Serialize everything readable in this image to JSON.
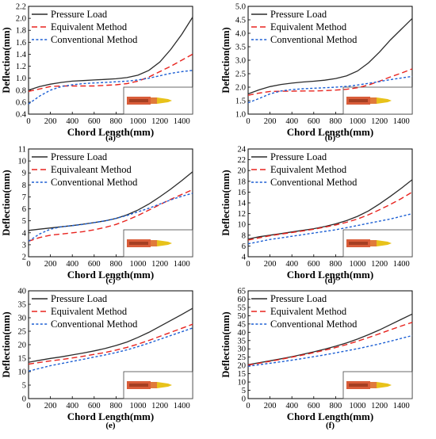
{
  "figure": {
    "colors": {
      "pressure": "#2b2b2b",
      "equivalent": "#e8231e",
      "conventional": "#1c5fd4",
      "bullet_body": "#d95d3a",
      "bullet_tip": "#e8c21a",
      "inset_border": "#444444"
    },
    "inset_icon": "bullet-projectile-icon"
  },
  "chart_data": [
    {
      "type": "line",
      "caption": "(a)",
      "xlabel": "Chord Length(mm)",
      "ylabel": "Deflection(mm)",
      "xlim": [
        0,
        1500
      ],
      "ylim": [
        0.4,
        2.2
      ],
      "xticks": [
        0,
        200,
        400,
        600,
        800,
        1000,
        1200,
        1400
      ],
      "yticks": [
        0.4,
        0.6,
        0.8,
        1.0,
        1.2,
        1.4,
        1.6,
        1.8,
        2.0,
        2.2
      ],
      "ytick_labels": [
        "0.4",
        "0.6",
        "0.8",
        "1.0",
        "1.2",
        "1.4",
        "1.6",
        "1.8",
        "2.0",
        "2.2"
      ],
      "legend_position": "top-left",
      "series": [
        {
          "name": "Pressure Load",
          "style": "solid",
          "x": [
            0,
            100,
            200,
            300,
            400,
            500,
            600,
            700,
            800,
            900,
            1000,
            1100,
            1200,
            1300,
            1400,
            1500
          ],
          "y": [
            0.8,
            0.86,
            0.9,
            0.93,
            0.95,
            0.96,
            0.97,
            0.98,
            0.99,
            1.01,
            1.05,
            1.13,
            1.27,
            1.48,
            1.73,
            2.02
          ]
        },
        {
          "name": "Equivalent Method",
          "style": "dash",
          "x": [
            0,
            100,
            200,
            300,
            400,
            500,
            600,
            700,
            800,
            900,
            1000,
            1100,
            1200,
            1300,
            1400,
            1500
          ],
          "y": [
            0.78,
            0.82,
            0.86,
            0.87,
            0.87,
            0.87,
            0.87,
            0.88,
            0.89,
            0.91,
            0.95,
            1.02,
            1.11,
            1.2,
            1.3,
            1.4
          ]
        },
        {
          "name": "Conventional Method",
          "style": "dot",
          "x": [
            0,
            100,
            200,
            300,
            400,
            500,
            600,
            700,
            800,
            900,
            1000,
            1100,
            1200,
            1300,
            1400,
            1500
          ],
          "y": [
            0.57,
            0.7,
            0.8,
            0.86,
            0.89,
            0.91,
            0.92,
            0.93,
            0.94,
            0.95,
            0.97,
            1.0,
            1.04,
            1.08,
            1.11,
            1.13
          ]
        }
      ]
    },
    {
      "type": "line",
      "caption": "(b)",
      "xlabel": "Chord Length(mm)",
      "ylabel": "Deflection(mm)",
      "xlim": [
        0,
        1500
      ],
      "ylim": [
        1.0,
        5.0
      ],
      "xticks": [
        0,
        200,
        400,
        600,
        800,
        1000,
        1200,
        1400
      ],
      "yticks": [
        1.0,
        1.5,
        2.0,
        2.5,
        3.0,
        3.5,
        4.0,
        4.5,
        5.0
      ],
      "ytick_labels": [
        "1.0",
        "1.5",
        "2.0",
        "2.5",
        "3.0",
        "3.5",
        "4.0",
        "4.5",
        "5.0"
      ],
      "legend_position": "top-left",
      "series": [
        {
          "name": "Pressure Load",
          "style": "solid",
          "x": [
            0,
            100,
            200,
            300,
            400,
            500,
            600,
            700,
            800,
            900,
            1000,
            1100,
            1200,
            1300,
            1400,
            1500
          ],
          "y": [
            1.75,
            1.9,
            2.02,
            2.1,
            2.15,
            2.19,
            2.22,
            2.26,
            2.32,
            2.42,
            2.6,
            2.9,
            3.3,
            3.75,
            4.15,
            4.55
          ]
        },
        {
          "name": "Equivalent Method",
          "style": "dash",
          "x": [
            0,
            100,
            200,
            300,
            400,
            500,
            600,
            700,
            800,
            900,
            1000,
            1100,
            1200,
            1300,
            1400,
            1500
          ],
          "y": [
            1.7,
            1.78,
            1.84,
            1.85,
            1.85,
            1.86,
            1.86,
            1.87,
            1.89,
            1.92,
            1.98,
            2.08,
            2.22,
            2.38,
            2.52,
            2.68
          ]
        },
        {
          "name": "Conventional Method",
          "style": "dot",
          "x": [
            0,
            100,
            200,
            300,
            400,
            500,
            600,
            700,
            800,
            900,
            1000,
            1100,
            1200,
            1300,
            1400,
            1500
          ],
          "y": [
            1.42,
            1.58,
            1.75,
            1.86,
            1.91,
            1.94,
            1.96,
            1.98,
            2.0,
            2.03,
            2.08,
            2.14,
            2.21,
            2.28,
            2.34,
            2.4
          ]
        }
      ]
    },
    {
      "type": "line",
      "caption": "(c)",
      "xlabel": "Chord Length(mm)",
      "ylabel": "Deflection(mm)",
      "xlim": [
        0,
        1500
      ],
      "ylim": [
        2,
        11
      ],
      "xticks": [
        0,
        200,
        400,
        600,
        800,
        1000,
        1200,
        1400
      ],
      "yticks": [
        2,
        3,
        4,
        5,
        6,
        7,
        8,
        9,
        10,
        11
      ],
      "ytick_labels": [
        "2",
        "3",
        "4",
        "5",
        "6",
        "7",
        "8",
        "9",
        "10",
        "11"
      ],
      "legend_position": "top-left",
      "series": [
        {
          "name": "Pressure Load",
          "style": "solid",
          "x": [
            0,
            100,
            200,
            300,
            400,
            500,
            600,
            700,
            800,
            900,
            1000,
            1100,
            1200,
            1300,
            1400,
            1500
          ],
          "y": [
            4.2,
            4.3,
            4.4,
            4.5,
            4.6,
            4.72,
            4.85,
            5.0,
            5.2,
            5.5,
            5.9,
            6.4,
            7.0,
            7.65,
            8.35,
            9.1
          ]
        },
        {
          "name": "Equivaleant Method",
          "style": "dash",
          "x": [
            0,
            100,
            200,
            300,
            400,
            500,
            600,
            700,
            800,
            900,
            1000,
            1100,
            1200,
            1300,
            1400,
            1500
          ],
          "y": [
            3.3,
            3.6,
            3.8,
            3.9,
            4.0,
            4.1,
            4.25,
            4.45,
            4.7,
            5.05,
            5.45,
            5.9,
            6.35,
            6.8,
            7.2,
            7.6
          ]
        },
        {
          "name": "Conventional Method",
          "style": "dot",
          "x": [
            0,
            100,
            200,
            300,
            400,
            500,
            600,
            700,
            800,
            900,
            1000,
            1100,
            1200,
            1300,
            1400,
            1500
          ],
          "y": [
            3.3,
            3.9,
            4.3,
            4.5,
            4.6,
            4.7,
            4.85,
            5.0,
            5.2,
            5.45,
            5.75,
            6.05,
            6.4,
            6.75,
            7.05,
            7.3
          ]
        }
      ]
    },
    {
      "type": "line",
      "caption": "(d)",
      "xlabel": "Chord Length(mm)",
      "ylabel": "Deflection(mm)",
      "xlim": [
        0,
        1500
      ],
      "ylim": [
        4,
        24
      ],
      "xticks": [
        0,
        200,
        400,
        600,
        800,
        1000,
        1200,
        1400
      ],
      "yticks": [
        4,
        6,
        8,
        10,
        12,
        14,
        16,
        18,
        20,
        22,
        24
      ],
      "ytick_labels": [
        "4",
        "6",
        "8",
        "10",
        "12",
        "14",
        "16",
        "18",
        "20",
        "22",
        "24"
      ],
      "legend_position": "top-left",
      "series": [
        {
          "name": "Pressure Load",
          "style": "solid",
          "x": [
            0,
            100,
            200,
            300,
            400,
            500,
            600,
            700,
            800,
            900,
            1000,
            1100,
            1200,
            1300,
            1400,
            1500
          ],
          "y": [
            7.3,
            7.7,
            8.0,
            8.3,
            8.6,
            8.9,
            9.2,
            9.6,
            10.1,
            10.7,
            11.5,
            12.5,
            13.8,
            15.2,
            16.7,
            18.3
          ]
        },
        {
          "name": "Equivalent Method",
          "style": "dash",
          "x": [
            0,
            100,
            200,
            300,
            400,
            500,
            600,
            700,
            800,
            900,
            1000,
            1100,
            1200,
            1300,
            1400,
            1500
          ],
          "y": [
            7.1,
            7.5,
            7.9,
            8.2,
            8.5,
            8.8,
            9.1,
            9.5,
            9.9,
            10.4,
            11.0,
            11.8,
            12.7,
            13.7,
            14.8,
            16.0
          ]
        },
        {
          "name": "Conventional Method",
          "style": "dot",
          "x": [
            0,
            100,
            200,
            300,
            400,
            500,
            600,
            700,
            800,
            900,
            1000,
            1100,
            1200,
            1300,
            1400,
            1500
          ],
          "y": [
            6.4,
            6.8,
            7.2,
            7.5,
            7.8,
            8.1,
            8.4,
            8.7,
            9.0,
            9.4,
            9.8,
            10.2,
            10.6,
            11.0,
            11.5,
            12.0
          ]
        }
      ]
    },
    {
      "type": "line",
      "caption": "(e)",
      "xlabel": "Chord Length(mm)",
      "ylabel": "Deflection(mm)",
      "xlim": [
        0,
        1500
      ],
      "ylim": [
        0,
        40
      ],
      "xticks": [
        0,
        200,
        400,
        600,
        800,
        1000,
        1200,
        1400
      ],
      "yticks": [
        0,
        5,
        10,
        15,
        20,
        25,
        30,
        35,
        40
      ],
      "ytick_labels": [
        "0",
        "5",
        "10",
        "15",
        "20",
        "25",
        "30",
        "35",
        "40"
      ],
      "legend_position": "top-left",
      "series": [
        {
          "name": "Pressure Load",
          "style": "solid",
          "x": [
            0,
            100,
            200,
            300,
            400,
            500,
            600,
            700,
            800,
            900,
            1000,
            1100,
            1200,
            1300,
            1400,
            1500
          ],
          "y": [
            13.5,
            14.2,
            14.9,
            15.5,
            16.2,
            16.9,
            17.7,
            18.6,
            19.7,
            21.0,
            22.7,
            24.6,
            26.8,
            29.0,
            31.2,
            33.5
          ]
        },
        {
          "name": "Equivalent Method",
          "style": "dash",
          "x": [
            0,
            100,
            200,
            300,
            400,
            500,
            600,
            700,
            800,
            900,
            1000,
            1100,
            1200,
            1300,
            1400,
            1500
          ],
          "y": [
            12.8,
            13.4,
            14.0,
            14.5,
            15.1,
            15.7,
            16.4,
            17.1,
            18.0,
            19.0,
            20.2,
            21.6,
            23.1,
            24.6,
            26.1,
            27.6
          ]
        },
        {
          "name": "Conventional Method",
          "style": "dot",
          "x": [
            0,
            100,
            200,
            300,
            400,
            500,
            600,
            700,
            800,
            900,
            1000,
            1100,
            1200,
            1300,
            1400,
            1500
          ],
          "y": [
            10.2,
            11.2,
            12.2,
            13.0,
            13.8,
            14.6,
            15.4,
            16.2,
            17.1,
            18.1,
            19.3,
            20.6,
            22.0,
            23.4,
            24.8,
            26.2
          ]
        }
      ]
    },
    {
      "type": "line",
      "caption": "(f)",
      "xlabel": "Chord Length(mm)",
      "ylabel": "Deflection(mm)",
      "xlim": [
        0,
        1500
      ],
      "ylim": [
        0,
        65
      ],
      "xticks": [
        0,
        200,
        400,
        600,
        800,
        1000,
        1200,
        1400
      ],
      "yticks": [
        0,
        5,
        10,
        15,
        20,
        25,
        30,
        35,
        40,
        45,
        50,
        55,
        60,
        65
      ],
      "ytick_labels": [
        "0",
        "5",
        "10",
        "15",
        "20",
        "25",
        "30",
        "35",
        "40",
        "45",
        "50",
        "55",
        "60",
        "65"
      ],
      "legend_position": "top-left",
      "series": [
        {
          "name": "Pressure Load",
          "style": "solid",
          "x": [
            0,
            100,
            200,
            300,
            400,
            500,
            600,
            700,
            800,
            900,
            1000,
            1100,
            1200,
            1300,
            1400,
            1500
          ],
          "y": [
            20.5,
            21.6,
            22.8,
            24.0,
            25.3,
            26.7,
            28.2,
            29.8,
            31.6,
            33.6,
            35.9,
            38.5,
            41.4,
            44.6,
            47.8,
            51.0
          ]
        },
        {
          "name": "Equivalent Method",
          "style": "dash",
          "x": [
            0,
            100,
            200,
            300,
            400,
            500,
            600,
            700,
            800,
            900,
            1000,
            1100,
            1200,
            1300,
            1400,
            1500
          ],
          "y": [
            20.2,
            21.3,
            22.5,
            23.7,
            25.0,
            26.3,
            27.7,
            29.2,
            30.8,
            32.6,
            34.6,
            36.8,
            39.1,
            41.5,
            43.8,
            46.0
          ]
        },
        {
          "name": "Conventional Method",
          "style": "dot",
          "x": [
            0,
            100,
            200,
            300,
            400,
            500,
            600,
            700,
            800,
            900,
            1000,
            1100,
            1200,
            1300,
            1400,
            1500
          ],
          "y": [
            19.5,
            20.4,
            21.3,
            22.2,
            23.2,
            24.2,
            25.3,
            26.4,
            27.6,
            28.8,
            30.1,
            31.5,
            33.0,
            34.6,
            36.3,
            38.0
          ]
        }
      ]
    }
  ]
}
